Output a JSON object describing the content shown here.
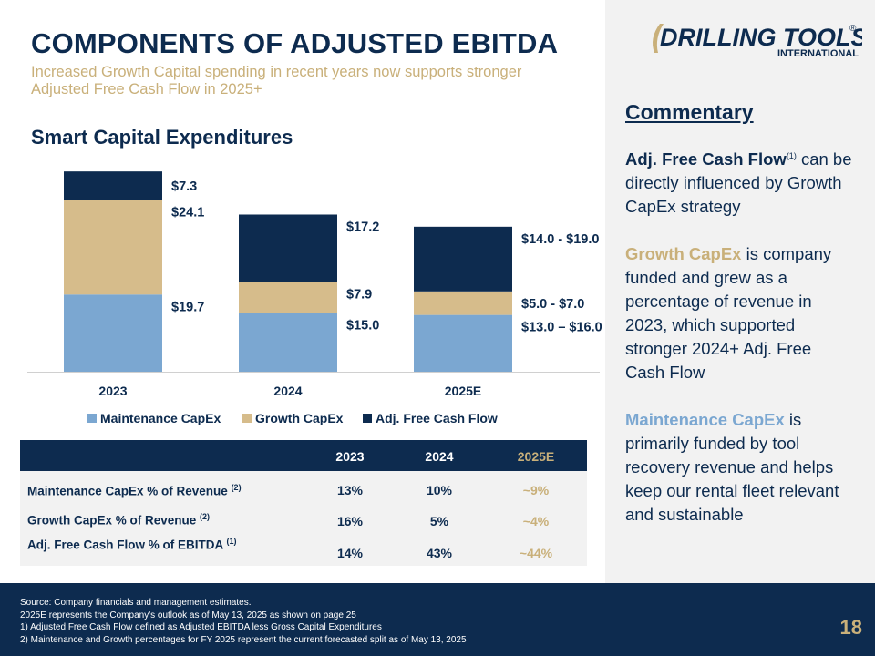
{
  "header": {
    "title": "COMPONENTS OF ADJUSTED EBITDA",
    "subtitle": "Increased Growth Capital spending in recent years now supports stronger Adjusted Free Cash Flow in 2025+"
  },
  "section_title": "Smart Capital Expenditures",
  "logo": {
    "main": "DRILLING TOOLS",
    "sub": "INTERNATIONAL",
    "mark": "®"
  },
  "commentary": {
    "title": "Commentary",
    "p1_bold": "Adj. Free Cash Flow",
    "p1_sup": "(1)",
    "p1_rest": " can be directly influenced by Growth CapEx strategy",
    "p2_highlight": "Growth CapEx",
    "p2_rest": " is company funded and grew as a percentage of revenue in 2023, which supported stronger 2024+ Adj. Free Cash Flow",
    "p3_highlight": "Maintenance CapEx",
    "p3_rest": " is primarily funded by tool recovery revenue and helps keep our rental fleet relevant and sustainable"
  },
  "colors": {
    "navy": "#0d2b4f",
    "gold": "#d6bc8b",
    "blue": "#7ba7d1",
    "panel": "#f2f2f2"
  },
  "chart_data": {
    "type": "bar",
    "stacked": true,
    "categories": [
      "2023",
      "2024",
      "2025E"
    ],
    "series": [
      {
        "name": "Maintenance CapEx",
        "values": [
          19.7,
          15.0,
          14.5
        ],
        "labels": [
          "$19.7",
          "$15.0",
          "$13.0 – $16.0"
        ],
        "color": "#7ba7d1"
      },
      {
        "name": "Growth CapEx",
        "values": [
          24.1,
          7.9,
          6.0
        ],
        "labels": [
          "$24.1",
          "$7.9",
          "$5.0 - $7.0"
        ],
        "color": "#d6bc8b"
      },
      {
        "name": "Adj. Free Cash Flow",
        "values": [
          7.3,
          17.2,
          16.5
        ],
        "labels": [
          "$7.3",
          "$17.2",
          "$14.0 - $19.0"
        ],
        "color": "#0d2b4f"
      }
    ],
    "ylim": [
      0,
      53
    ],
    "legend": "bottom",
    "grid": false
  },
  "table": {
    "headers": [
      "2023",
      "2024",
      "2025E"
    ],
    "rows": [
      {
        "label": "Maintenance CapEx % of Revenue ",
        "sup": "(2)",
        "values": [
          "13%",
          "10%",
          "~9%"
        ]
      },
      {
        "label": "Growth CapEx % of Revenue ",
        "sup": "(2)",
        "values": [
          "16%",
          "5%",
          "~4%"
        ]
      },
      {
        "label": "Adj. Free Cash Flow % of EBITDA ",
        "sup": "(1)",
        "values": [
          "14%",
          "43%",
          "~44%"
        ]
      }
    ]
  },
  "footer": {
    "notes": [
      "Source: Company financials and management estimates.",
      "2025E represents the Company's outlook as of May 13, 2025 as shown on page 25",
      "1)   Adjusted Free Cash Flow defined as Adjusted EBITDA less Gross Capital Expenditures",
      "2)  Maintenance and Growth percentages for FY 2025 represent the current forecasted split as of May 13, 2025"
    ],
    "page_number": "18"
  }
}
